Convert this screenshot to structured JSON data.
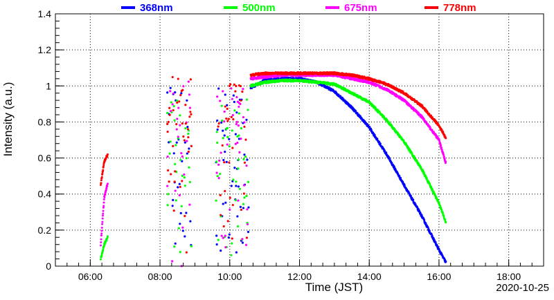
{
  "chart_data": {
    "type": "scatter",
    "xlabel": "Time (JST)",
    "ylabel": "Intensity (a.u.)",
    "date": "2020-10-25",
    "xlim": [
      5.0,
      19.0
    ],
    "ylim": [
      0,
      1.4
    ],
    "x_ticks": [
      6,
      8,
      10,
      12,
      14,
      16,
      18
    ],
    "x_tick_labels": [
      "06:00",
      "08:00",
      "10:00",
      "12:00",
      "14:00",
      "16:00",
      "18:00"
    ],
    "y_ticks": [
      0,
      0.2,
      0.4,
      0.6,
      0.8,
      1,
      1.2,
      1.4
    ],
    "y_tick_labels": [
      "0",
      "0.2",
      "0.4",
      "0.6",
      "0.8",
      "1",
      "1.2",
      "1.4"
    ],
    "grid": true,
    "legend_position": "top",
    "series": [
      {
        "name": "368nm",
        "color": "#0000ff",
        "curve": [
          [
            10.6,
            0.99
          ],
          [
            11.0,
            1.03
          ],
          [
            11.5,
            1.04
          ],
          [
            12.0,
            1.04
          ],
          [
            12.5,
            1.02
          ],
          [
            13.0,
            0.97
          ],
          [
            13.5,
            0.88
          ],
          [
            14.0,
            0.77
          ],
          [
            14.5,
            0.62
          ],
          [
            15.0,
            0.45
          ],
          [
            15.5,
            0.28
          ],
          [
            16.0,
            0.09
          ],
          [
            16.2,
            0.02
          ]
        ],
        "noisy_spans": [
          [
            8.2,
            8.9
          ],
          [
            9.6,
            10.55
          ]
        ],
        "noise_range": [
          0.0,
          1.0
        ]
      },
      {
        "name": "500nm",
        "color": "#00ff00",
        "curve": [
          [
            6.3,
            0.04
          ],
          [
            6.4,
            0.12
          ],
          [
            6.5,
            0.16
          ],
          [
            10.6,
            1.0
          ],
          [
            11.0,
            1.02
          ],
          [
            11.5,
            1.03
          ],
          [
            12.0,
            1.03
          ],
          [
            12.5,
            1.02
          ],
          [
            13.0,
            1.01
          ],
          [
            13.5,
            0.96
          ],
          [
            14.0,
            0.91
          ],
          [
            14.5,
            0.81
          ],
          [
            15.0,
            0.69
          ],
          [
            15.5,
            0.54
          ],
          [
            16.0,
            0.35
          ],
          [
            16.2,
            0.24
          ]
        ],
        "noisy_spans": [
          [
            8.2,
            8.9
          ],
          [
            9.6,
            10.55
          ]
        ],
        "noise_range": [
          0.0,
          0.95
        ]
      },
      {
        "name": "675nm",
        "color": "#ff00ff",
        "curve": [
          [
            6.3,
            0.12
          ],
          [
            6.4,
            0.38
          ],
          [
            6.5,
            0.46
          ],
          [
            10.6,
            1.04
          ],
          [
            11.0,
            1.05
          ],
          [
            11.5,
            1.06
          ],
          [
            12.0,
            1.06
          ],
          [
            12.5,
            1.06
          ],
          [
            13.0,
            1.06
          ],
          [
            13.5,
            1.04
          ],
          [
            14.0,
            1.02
          ],
          [
            14.5,
            0.98
          ],
          [
            15.0,
            0.92
          ],
          [
            15.5,
            0.83
          ],
          [
            16.0,
            0.7
          ],
          [
            16.2,
            0.57
          ]
        ],
        "noisy_spans": [
          [
            8.2,
            8.9
          ],
          [
            9.6,
            10.55
          ]
        ],
        "noise_range": [
          0.0,
          1.03
        ]
      },
      {
        "name": "778nm",
        "color": "#ff0000",
        "curve": [
          [
            6.3,
            0.45
          ],
          [
            6.4,
            0.58
          ],
          [
            6.5,
            0.62
          ],
          [
            10.6,
            1.06
          ],
          [
            11.0,
            1.07
          ],
          [
            11.5,
            1.07
          ],
          [
            12.0,
            1.07
          ],
          [
            12.5,
            1.07
          ],
          [
            13.0,
            1.07
          ],
          [
            13.5,
            1.06
          ],
          [
            14.0,
            1.04
          ],
          [
            14.5,
            1.01
          ],
          [
            15.0,
            0.96
          ],
          [
            15.5,
            0.89
          ],
          [
            16.0,
            0.78
          ],
          [
            16.2,
            0.71
          ]
        ],
        "noisy_spans": [
          [
            8.2,
            8.9
          ],
          [
            9.6,
            10.55
          ]
        ],
        "noise_range": [
          0.0,
          1.05
        ]
      }
    ]
  }
}
